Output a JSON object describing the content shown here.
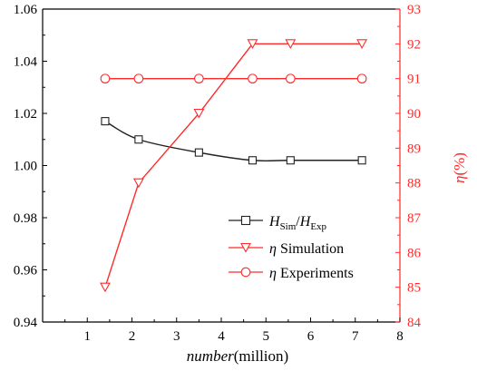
{
  "chart_data": {
    "type": "line",
    "xlabel_italic": "number",
    "xlabel_rest": "(million)",
    "ylabel_right_italic": "η",
    "ylabel_right_rest": "(%)",
    "xlim": [
      0,
      8
    ],
    "xticks": [
      "1",
      "2",
      "3",
      "4",
      "5",
      "6",
      "7",
      "8"
    ],
    "ylim_left": [
      0.94,
      1.06
    ],
    "yticks_left": [
      "0.94",
      "0.96",
      "0.98",
      "1.00",
      "1.02",
      "1.04",
      "1.06"
    ],
    "ylim_right": [
      84,
      93
    ],
    "yticks_right": [
      "84",
      "85",
      "86",
      "87",
      "88",
      "89",
      "90",
      "91",
      "92",
      "93"
    ],
    "grid": false,
    "legend_position": "lower-right",
    "series": [
      {
        "name_main": "H",
        "name_sub": "Sim",
        "name_sep": "/",
        "name_main2": "H",
        "name_sub2": "Exp",
        "axis": "left",
        "marker": "square",
        "color": "#222222",
        "x": [
          1.4,
          2.15,
          3.5,
          4.7,
          5.55,
          7.15
        ],
        "y": [
          1.017,
          1.01,
          1.005,
          1.002,
          1.002,
          1.002
        ]
      },
      {
        "name_italic": "η",
        "name_rest": " Simulation",
        "axis": "right",
        "marker": "triangle-down",
        "color": "#ff2a2a",
        "x": [
          1.4,
          2.15,
          3.5,
          4.7,
          5.55,
          7.15
        ],
        "y": [
          85,
          88,
          90,
          92,
          92,
          92
        ]
      },
      {
        "name_italic": "η",
        "name_rest": " Experiments",
        "axis": "right",
        "marker": "circle",
        "color": "#ff2a2a",
        "x": [
          1.4,
          2.15,
          3.5,
          4.7,
          5.55,
          7.15
        ],
        "y": [
          91,
          91,
          91,
          91,
          91,
          91
        ]
      }
    ]
  }
}
